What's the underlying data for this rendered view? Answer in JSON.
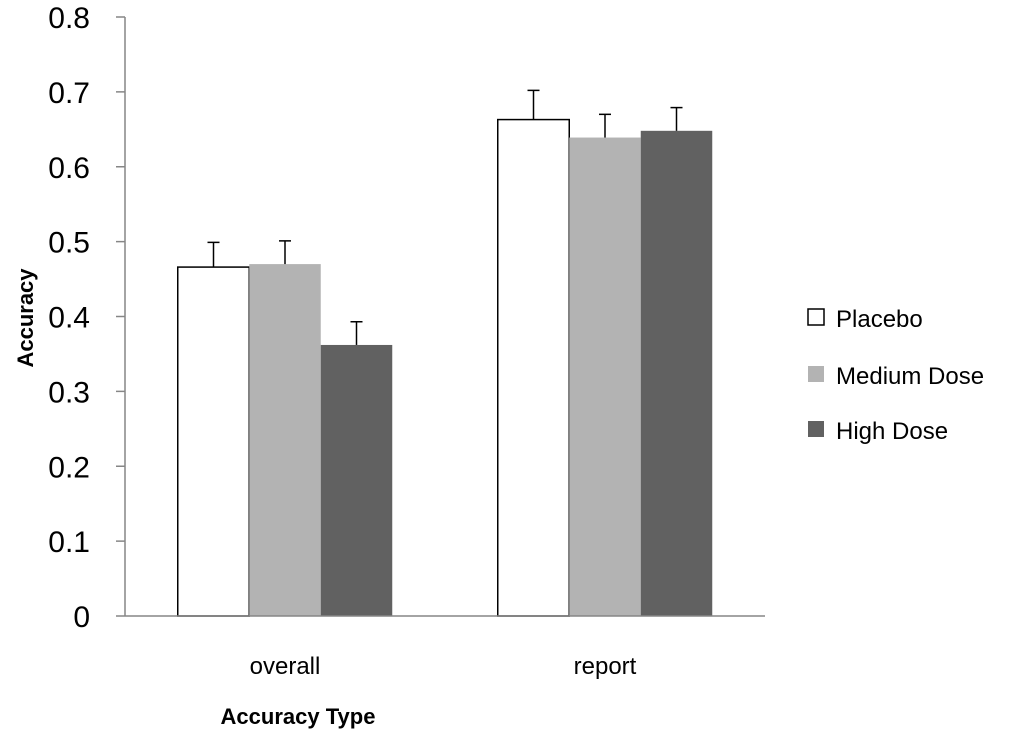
{
  "chart_data": {
    "type": "bar",
    "title": "",
    "xlabel": "Accuracy Type",
    "ylabel": "Accuracy",
    "ylim": [
      0,
      0.8
    ],
    "yticks": [
      0,
      0.1,
      0.2,
      0.3,
      0.4,
      0.5,
      0.6,
      0.7,
      0.8
    ],
    "ytick_labels": [
      "0",
      "0.1",
      "0.2",
      "0.3",
      "0.4",
      "0.5",
      "0.6",
      "0.7",
      "0.8"
    ],
    "categories": [
      "overall",
      "report"
    ],
    "series": [
      {
        "name": "Placebo",
        "color": "#ffffff",
        "values": [
          0.466,
          0.663
        ],
        "errors": [
          0.033,
          0.039
        ]
      },
      {
        "name": "Medium Dose",
        "color": "#b3b3b3",
        "values": [
          0.47,
          0.639
        ],
        "errors": [
          0.031,
          0.031
        ]
      },
      {
        "name": "High Dose",
        "color": "#616161",
        "values": [
          0.362,
          0.648
        ],
        "errors": [
          0.031,
          0.031
        ]
      }
    ],
    "grid": false,
    "legend_position": "right"
  }
}
